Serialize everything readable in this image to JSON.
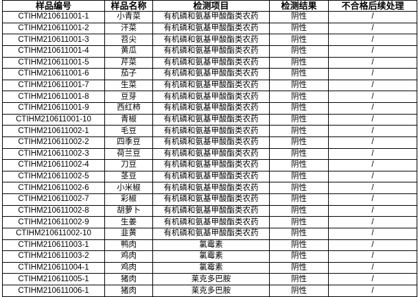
{
  "headers": [
    "样品编号",
    "样品名称",
    "检测项目",
    "检测结果",
    "不合格后续处理"
  ],
  "rows": [
    [
      "CTIHM210611001-1",
      "小青菜",
      "有机磷和氨基甲酸酯类农药",
      "阴性",
      "/"
    ],
    [
      "CTIHM210611001-2",
      "汗菜",
      "有机磷和氨基甲酸酯类农药",
      "阴性",
      "/"
    ],
    [
      "CTIHM210611001-3",
      "苕尖",
      "有机磷和氨基甲酸酯类农药",
      "阴性",
      "/"
    ],
    [
      "CTIHM210611001-4",
      "黄瓜",
      "有机磷和氨基甲酸酯类农药",
      "阴性",
      "/"
    ],
    [
      "CTIHM210611001-5",
      "芹菜",
      "有机磷和氨基甲酸酯类农药",
      "阴性",
      "/"
    ],
    [
      "CTIHM210611001-6",
      "茄子",
      "有机磷和氨基甲酸酯类农药",
      "阴性",
      "/"
    ],
    [
      "CTIHM210611001-7",
      "生菜",
      "有机磷和氨基甲酸酯类农药",
      "阴性",
      "/"
    ],
    [
      "CTIHM210611001-8",
      "豆芽",
      "有机磷和氨基甲酸酯类农药",
      "阴性",
      "/"
    ],
    [
      "CTIHM210611001-9",
      "西红柿",
      "有机磷和氨基甲酸酯类农药",
      "阴性",
      "/"
    ],
    [
      "CTIHM210611001-10",
      "青椒",
      "有机磷和氨基甲酸酯类农药",
      "阴性",
      "/"
    ],
    [
      "CTIHM210611002-1",
      "毛豆",
      "有机磷和氨基甲酸酯类农药",
      "阴性",
      "/"
    ],
    [
      "CTIHM210611002-2",
      "四季豆",
      "有机磷和氨基甲酸酯类农药",
      "阴性",
      "/"
    ],
    [
      "CTIHM210611002-3",
      "荷兰豆",
      "有机磷和氨基甲酸酯类农药",
      "阴性",
      "/"
    ],
    [
      "CTIHM210611002-4",
      "刀豆",
      "有机磷和氨基甲酸酯类农药",
      "阴性",
      "/"
    ],
    [
      "CTIHM210611002-5",
      "茎豆",
      "有机磷和氨基甲酸酯类农药",
      "阴性",
      "/"
    ],
    [
      "CTIHM210611002-6",
      "小米椒",
      "有机磷和氨基甲酸酯类农药",
      "阴性",
      "/"
    ],
    [
      "CTIHM210611002-7",
      "彩椒",
      "有机磷和氨基甲酸酯类农药",
      "阴性",
      "/"
    ],
    [
      "CTIHM210611002-8",
      "胡萝卜",
      "有机磷和氨基甲酸酯类农药",
      "阴性",
      "/"
    ],
    [
      "CTIHM210611002-9",
      "生姜",
      "有机磷和氨基甲酸酯类农药",
      "阴性",
      "/"
    ],
    [
      "CTIHM210611002-10",
      "韭黄",
      "有机磷和氨基甲酸酯类农药",
      "阴性",
      "/"
    ],
    [
      "CTIHM210611003-1",
      "鸭肉",
      "氯霉素",
      "阴性",
      "/"
    ],
    [
      "CTIHM210611003-2",
      "鸡肉",
      "氯霉素",
      "阴性",
      "/"
    ],
    [
      "CTIHM210611004-1",
      "鸡肉",
      "氯霉素",
      "阴性",
      "/"
    ],
    [
      "CTIHM210611005-1",
      "猪肉",
      "莱克多巴胺",
      "阴性",
      "/"
    ],
    [
      "CTIHM210611006-1",
      "猪肉",
      "莱克多巴胺",
      "阴性",
      "/"
    ]
  ]
}
